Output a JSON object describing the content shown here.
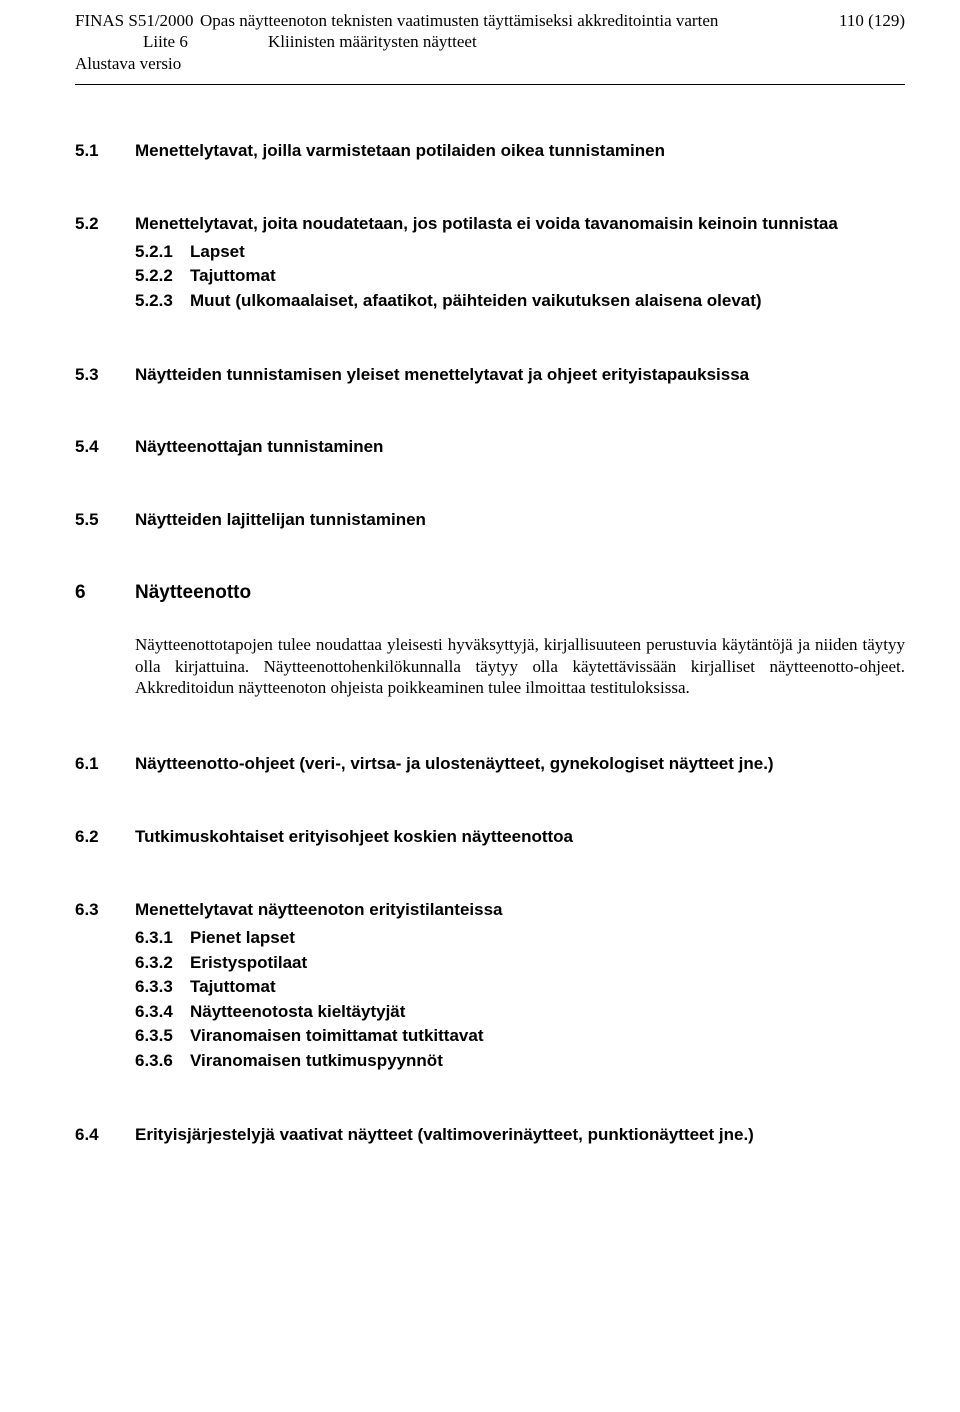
{
  "header": {
    "doc_left1": "FINAS S51/2000",
    "doc_mid1": "Opas näytteenoton teknisten vaatimusten täyttämiseksi akkreditointia varten",
    "page_no": "110 (129)",
    "doc_left2": "Liite 6",
    "doc_mid2": "Kliinisten määritysten näytteet",
    "version": "Alustava versio"
  },
  "s51": {
    "num": "5.1",
    "title": "Menettelytavat, joilla varmistetaan potilaiden oikea tunnistaminen"
  },
  "s52": {
    "num": "5.2",
    "title": "Menettelytavat, joita noudatetaan, jos potilasta ei voida tavanomaisin keinoin tunnistaa",
    "items": [
      {
        "num": "5.2.1",
        "txt": "Lapset"
      },
      {
        "num": "5.2.2",
        "txt": "Tajuttomat"
      },
      {
        "num": "5.2.3",
        "txt": "Muut (ulkomaalaiset, afaatikot, päihteiden vaikutuksen alaisena olevat)"
      }
    ]
  },
  "s53": {
    "num": "5.3",
    "title": "Näytteiden tunnistamisen yleiset menettelytavat ja ohjeet erityistapauksissa"
  },
  "s54": {
    "num": "5.4",
    "title": "Näytteenottajan tunnistaminen"
  },
  "s55": {
    "num": "5.5",
    "title": "Näytteiden lajittelijan tunnistaminen"
  },
  "ch6": {
    "num": "6",
    "title": "Näytteenotto",
    "body": "Näytteenottotapojen tulee noudattaa yleisesti hyväksyttyjä, kirjallisuuteen perustuvia käytäntöjä ja niiden täytyy olla kirjattuina. Näytteenottohenkilökunnalla täytyy olla käytettävissään kirjalliset näytteenotto-ohjeet. Akkreditoidun näytteenoton ohjeista poikkeaminen tulee ilmoittaa testituloksissa."
  },
  "s61": {
    "num": "6.1",
    "title": "Näytteenotto-ohjeet (veri-, virtsa- ja ulostenäytteet, gynekologiset näytteet jne.)"
  },
  "s62": {
    "num": "6.2",
    "title": "Tutkimuskohtaiset erityisohjeet koskien näytteenottoa"
  },
  "s63": {
    "num": "6.3",
    "title": "Menettelytavat näytteenoton erityistilanteissa",
    "items": [
      {
        "num": "6.3.1",
        "txt": "Pienet lapset"
      },
      {
        "num": "6.3.2",
        "txt": "Eristyspotilaat"
      },
      {
        "num": "6.3.3",
        "txt": "Tajuttomat"
      },
      {
        "num": "6.3.4",
        "txt": "Näytteenotosta kieltäytyjät"
      },
      {
        "num": "6.3.5",
        "txt": "Viranomaisen toimittamat tutkittavat"
      },
      {
        "num": "6.3.6",
        "txt": "Viranomaisen tutkimuspyynnöt"
      }
    ]
  },
  "s64": {
    "num": "6.4",
    "title": "Erityisjärjestelyjä vaativat näytteet (valtimoverinäytteet, punktionäytteet jne.)"
  }
}
